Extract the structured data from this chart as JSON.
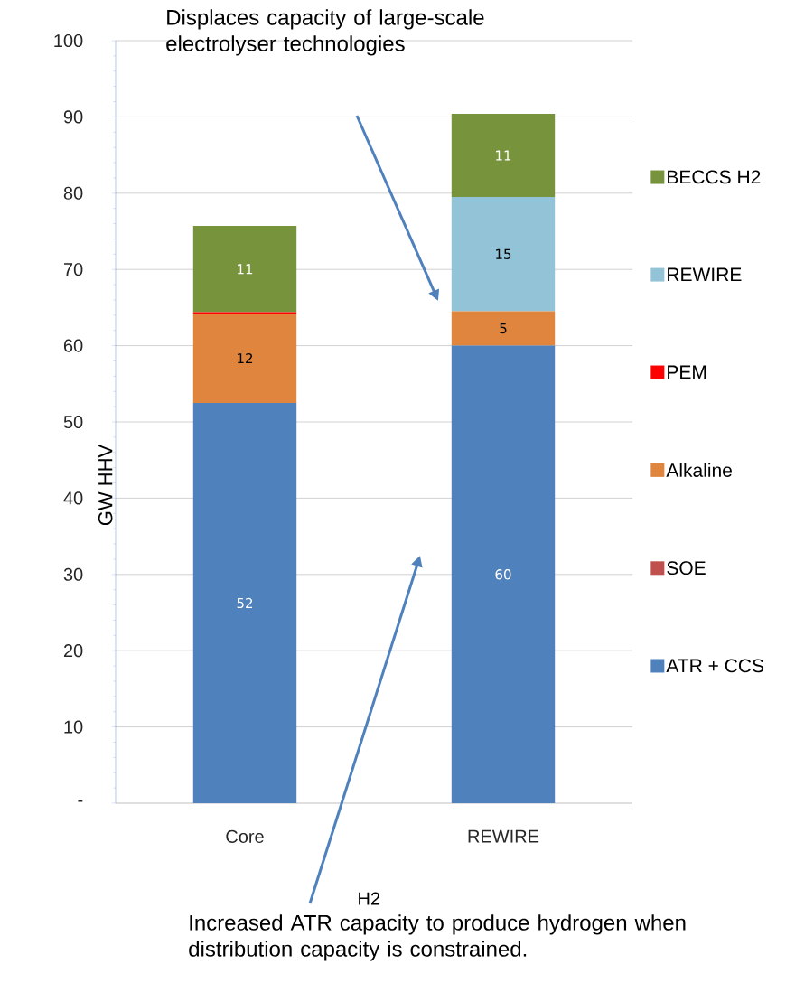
{
  "chart_data": {
    "type": "bar",
    "stacked": true,
    "xlabel": "H2",
    "ylabel": "GW HHV",
    "categories": [
      "Core",
      "REWIRE"
    ],
    "series": [
      {
        "name": "ATR + CCS",
        "color": "#4f81bd",
        "values": [
          52.5,
          60
        ],
        "value_labels": [
          "52",
          "60"
        ]
      },
      {
        "name": "SOE",
        "color": "#c0504d",
        "values": [
          0,
          0
        ],
        "value_labels": [
          null,
          null
        ]
      },
      {
        "name": "Alkaline",
        "color": "#e0853e",
        "values": [
          11.7,
          4.5
        ],
        "value_labels": [
          "12",
          "5"
        ]
      },
      {
        "name": "PEM",
        "color": "#ff0000",
        "values": [
          0.2,
          0
        ],
        "value_labels": [
          null,
          null
        ]
      },
      {
        "name": "REWIRE",
        "color": "#93c3d6",
        "values": [
          0,
          15
        ],
        "value_labels": [
          null,
          "15"
        ]
      },
      {
        "name": "BECCS H2",
        "color": "#77933c",
        "values": [
          11.3,
          10.9
        ],
        "value_labels": [
          "11",
          "11"
        ]
      }
    ],
    "ylim": [
      0,
      100
    ],
    "yticks": [
      {
        "value": 0,
        "label": "-"
      },
      10,
      20,
      30,
      40,
      50,
      60,
      70,
      80,
      90,
      100
    ],
    "grid": "y",
    "legend": "right",
    "annotations": [
      "Displaces capacity of large-scale electrolyser technologies",
      "Increased ATR capacity to produce hydrogen when distribution capacity is constrained."
    ]
  }
}
